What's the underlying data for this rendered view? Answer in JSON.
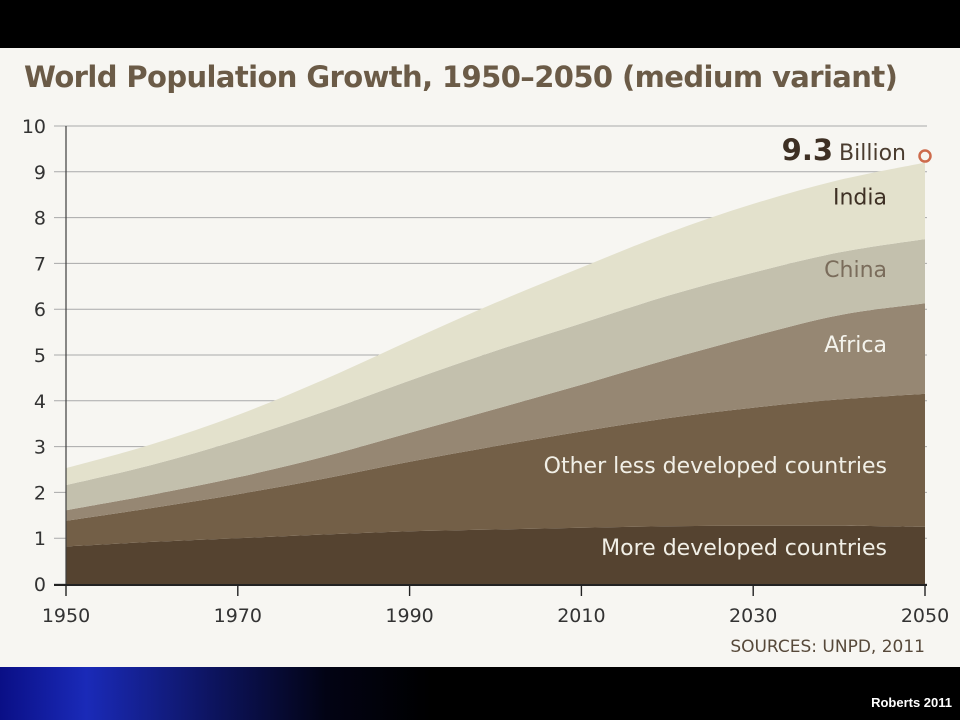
{
  "slide": {
    "credit": "Roberts 2011"
  },
  "chart_data": {
    "type": "area",
    "stacked": true,
    "title": "World Population Growth, 1950–2050 (medium variant)",
    "source": "SOURCES: UNPD, 2011",
    "x": [
      1950,
      1960,
      1970,
      1980,
      1990,
      2000,
      2010,
      2020,
      2030,
      2040,
      2050
    ],
    "xticks": [
      "1950",
      "1970",
      "1990",
      "2010",
      "2030",
      "2050"
    ],
    "xlim": [
      1950,
      2050
    ],
    "ylim": [
      0,
      10
    ],
    "yticks": [
      "0",
      "1",
      "2",
      "3",
      "4",
      "5",
      "6",
      "7",
      "8",
      "9",
      "10"
    ],
    "grid": true,
    "series": [
      {
        "name": "More developed countries",
        "values": [
          0.82,
          0.92,
          1.0,
          1.08,
          1.15,
          1.19,
          1.23,
          1.26,
          1.27,
          1.27,
          1.25
        ],
        "color": "#554330"
      },
      {
        "name": "Other less developed countries",
        "values": [
          0.56,
          0.74,
          0.96,
          1.22,
          1.52,
          1.82,
          2.1,
          2.36,
          2.58,
          2.76,
          2.9
        ],
        "color": "#735f47"
      },
      {
        "name": "Africa",
        "values": [
          0.23,
          0.29,
          0.37,
          0.48,
          0.63,
          0.81,
          1.02,
          1.28,
          1.56,
          1.84,
          1.98
        ],
        "color": "#968773"
      },
      {
        "name": "China",
        "values": [
          0.55,
          0.65,
          0.81,
          0.98,
          1.14,
          1.27,
          1.34,
          1.39,
          1.39,
          1.37,
          1.4
        ],
        "color": "#c3c0ad"
      },
      {
        "name": "India",
        "values": [
          0.37,
          0.45,
          0.55,
          0.7,
          0.87,
          1.05,
          1.22,
          1.37,
          1.5,
          1.58,
          1.67
        ],
        "color": "#e3e1cc"
      }
    ],
    "annotation": {
      "value": "9.3",
      "unit": "Billion",
      "x": 2050,
      "y": 9.3,
      "marker": "open-circle",
      "color": "#cd6b4c"
    }
  }
}
